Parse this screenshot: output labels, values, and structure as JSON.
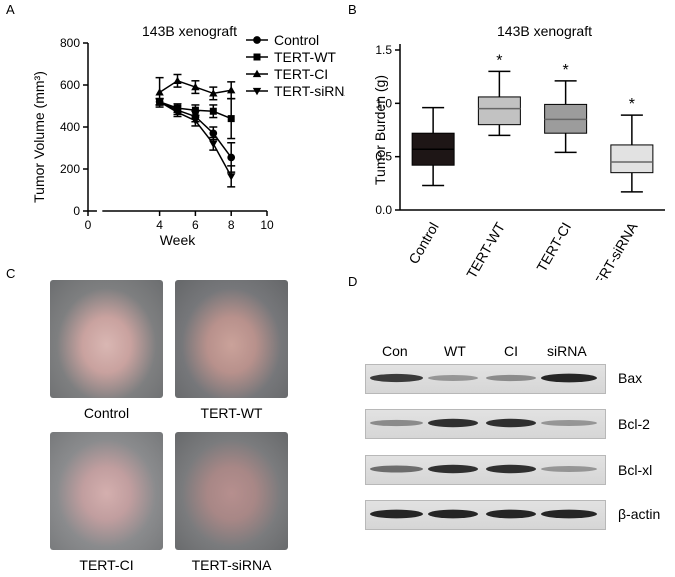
{
  "panels": {
    "a": "A",
    "b": "B",
    "c": "C",
    "d": "D"
  },
  "chart_data": [
    {
      "type": "line",
      "title": "143B xenograft",
      "xlabel": "Week",
      "ylabel": "Tumor Volume (mm³)",
      "xlim": [
        0,
        10
      ],
      "ylim": [
        0,
        800
      ],
      "xticks": [
        0,
        4,
        6,
        8,
        10
      ],
      "yticks": [
        0,
        200,
        400,
        600,
        800
      ],
      "tick_text": {
        "x": [
          "0",
          "4",
          "6",
          "8",
          "10"
        ],
        "y": [
          "0",
          "200",
          "400",
          "600",
          "800"
        ]
      },
      "legend_position": "top-right",
      "series": [
        {
          "name": "Control",
          "marker": "circle",
          "x": [
            4,
            5,
            6,
            7,
            8
          ],
          "y": [
            520,
            480,
            450,
            370,
            255
          ],
          "err": [
            15,
            20,
            25,
            30,
            70
          ]
        },
        {
          "name": "TERT-WT",
          "marker": "square",
          "x": [
            4,
            5,
            6,
            7,
            8
          ],
          "y": [
            520,
            490,
            480,
            475,
            440
          ],
          "err": [
            15,
            20,
            25,
            30,
            95
          ]
        },
        {
          "name": "TERT-CI",
          "marker": "triangle-up",
          "x": [
            4,
            5,
            6,
            7,
            8
          ],
          "y": [
            565,
            620,
            590,
            560,
            575
          ],
          "err": [
            70,
            30,
            30,
            30,
            40
          ]
        },
        {
          "name": "TERT-siRNA",
          "marker": "triangle-down",
          "x": [
            4,
            5,
            6,
            7,
            8
          ],
          "y": [
            520,
            470,
            430,
            320,
            165
          ],
          "err": [
            15,
            20,
            25,
            30,
            50
          ]
        }
      ]
    },
    {
      "type": "box",
      "title": "143B xenograft",
      "ylabel": "Tumor Burden (g)",
      "ylim": [
        0,
        1.5
      ],
      "yticks": [
        0,
        0.5,
        1.0,
        1.5
      ],
      "tick_text": {
        "y": [
          "0.0",
          "0.5",
          "1.0",
          "1.5"
        ]
      },
      "categories": [
        "Control",
        "TERT-WT",
        "TERT-CI",
        "TERT-siRNA"
      ],
      "boxes": [
        {
          "name": "Control",
          "min": 0.23,
          "q1": 0.42,
          "median": 0.57,
          "q3": 0.72,
          "max": 0.96,
          "color": "#1e1616",
          "annotation": ""
        },
        {
          "name": "TERT-WT",
          "min": 0.7,
          "q1": 0.8,
          "median": 0.95,
          "q3": 1.06,
          "max": 1.3,
          "color": "#c2c2c2",
          "annotation": "*"
        },
        {
          "name": "TERT-CI",
          "min": 0.54,
          "q1": 0.72,
          "median": 0.85,
          "q3": 0.99,
          "max": 1.21,
          "color": "#9c9c9c",
          "annotation": "*"
        },
        {
          "name": "TERT-siRNA",
          "min": 0.17,
          "q1": 0.35,
          "median": 0.45,
          "q3": 0.61,
          "max": 0.89,
          "color": "#e2e2e2",
          "annotation": "*"
        }
      ]
    }
  ],
  "photos": [
    {
      "caption": "Control"
    },
    {
      "caption": "TERT-WT"
    },
    {
      "caption": "TERT-CI"
    },
    {
      "caption": "TERT-siRNA"
    }
  ],
  "western": {
    "lanes": [
      "Con",
      "WT",
      "CI",
      "siRNA"
    ],
    "rows": [
      {
        "label": "Bax",
        "intensity": [
          0.8,
          0.35,
          0.4,
          0.9
        ]
      },
      {
        "label": "Bcl-2",
        "intensity": [
          0.4,
          0.85,
          0.85,
          0.35
        ]
      },
      {
        "label": "Bcl-xl",
        "intensity": [
          0.55,
          0.85,
          0.85,
          0.35
        ]
      },
      {
        "label": "β-actin",
        "intensity": [
          0.9,
          0.9,
          0.9,
          0.9
        ]
      }
    ]
  }
}
